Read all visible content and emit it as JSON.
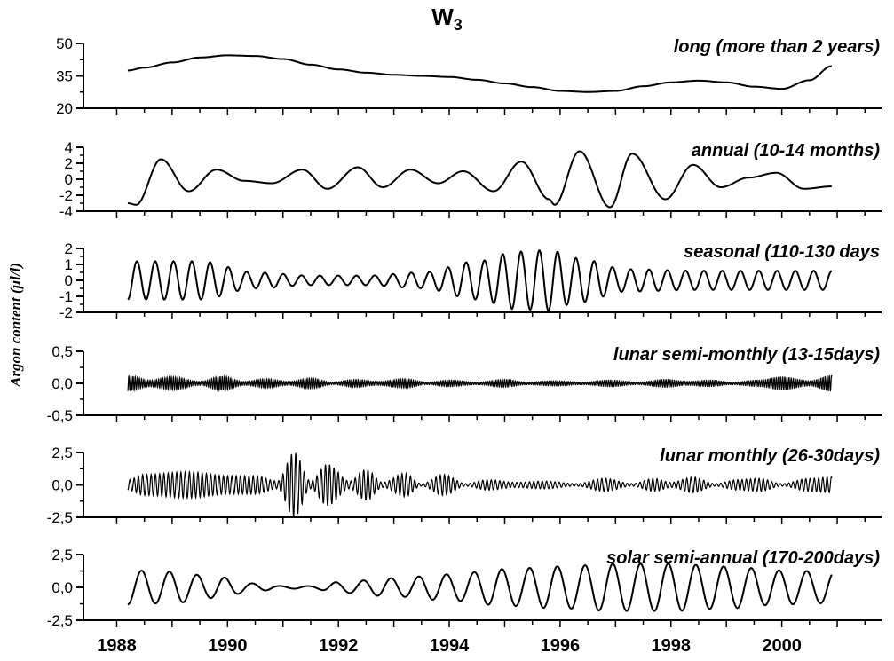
{
  "figure": {
    "title_main": "W",
    "title_sub": "3",
    "ylabel": "Argon content (μl/l)"
  },
  "chart_data": {
    "type": "line",
    "title": "W3",
    "xlabel": "",
    "ylabel": "Argon content (μl/l)",
    "x_ticks": [
      "1988",
      "1990",
      "1992",
      "1994",
      "1996",
      "1998",
      "2000"
    ],
    "xlim": [
      1987.4,
      2001.8
    ],
    "grid": false,
    "panels": [
      {
        "name": "long (more than 2 years)",
        "ylim": [
          20,
          50
        ],
        "yticks": [
          "50",
          "35",
          "20"
        ],
        "series_x": [
          1988.2,
          1988.5,
          1989.0,
          1989.5,
          1990.0,
          1990.5,
          1991.0,
          1991.5,
          1992.0,
          1992.5,
          1993.0,
          1993.5,
          1994.0,
          1994.5,
          1995.0,
          1995.5,
          1996.0,
          1996.5,
          1997.0,
          1997.5,
          1998.0,
          1998.5,
          1999.0,
          1999.5,
          2000.0,
          2000.5,
          2000.9
        ],
        "series_y": [
          37.5,
          38.8,
          41.2,
          43.5,
          44.5,
          44.2,
          42.8,
          40.2,
          38.0,
          36.5,
          35.5,
          35.0,
          34.5,
          33.2,
          31.5,
          29.8,
          28.0,
          27.5,
          28.0,
          30.2,
          32.0,
          32.8,
          32.0,
          30.0,
          29.0,
          33.0,
          39.5
        ]
      },
      {
        "name": "annual (10-14 months)",
        "ylim": [
          -4,
          4
        ],
        "yticks": [
          "4",
          "2",
          "0",
          "-2",
          "-4"
        ],
        "series_x": [
          1988.2,
          1988.35,
          1988.8,
          1989.3,
          1989.8,
          1990.3,
          1990.8,
          1991.35,
          1991.8,
          1992.35,
          1992.8,
          1993.3,
          1993.8,
          1994.25,
          1994.8,
          1995.3,
          1995.8,
          1995.9,
          1996.35,
          1996.9,
          1997.3,
          1997.9,
          1998.4,
          1998.9,
          1999.4,
          1999.9,
          2000.4,
          2000.9
        ],
        "series_y": [
          -3.0,
          -3.2,
          2.5,
          -1.5,
          1.2,
          -0.2,
          -0.5,
          1.2,
          -1.2,
          1.5,
          -1.0,
          1.2,
          -0.5,
          1.0,
          -1.5,
          2.2,
          -2.5,
          -3.2,
          3.5,
          -3.5,
          3.2,
          -2.5,
          1.8,
          -1.0,
          0.2,
          0.8,
          -1.2,
          -0.9
        ]
      },
      {
        "name": "seasonal (110-130 days",
        "ylim": [
          -2,
          2
        ],
        "yticks": [
          "2",
          "1",
          "0",
          "-1",
          "-2"
        ],
        "period_years": 0.33,
        "env_x": [
          1988.2,
          1989.5,
          1990.5,
          1991.5,
          1992.5,
          1993.5,
          1994.5,
          1995.2,
          1995.8,
          1996.3,
          1997.2,
          1998.5,
          2000.9
        ],
        "env_amp": [
          1.2,
          1.2,
          0.5,
          0.3,
          0.3,
          0.5,
          1.2,
          1.8,
          1.9,
          1.4,
          0.7,
          0.6,
          0.6
        ]
      },
      {
        "name": "lunar semi-monthly (13-15days)",
        "ylim": [
          -0.5,
          0.5
        ],
        "yticks": [
          "0,5",
          "0,0",
          "-0,5"
        ],
        "period_years": 0.0383,
        "env_x": [
          1988.2,
          1988.6,
          1989.0,
          1989.5,
          1989.9,
          1990.3,
          1990.7,
          1991.1,
          1991.5,
          1991.9,
          1992.3,
          1992.7,
          1993.2,
          1993.6,
          1994.0,
          1994.5,
          1995.0,
          1995.4,
          1995.9,
          1996.4,
          1996.9,
          1997.4,
          1997.9,
          1998.3,
          1998.7,
          1999.1,
          1999.6,
          2000.0,
          2000.5,
          2000.9
        ],
        "env_amp": [
          0.12,
          0.05,
          0.1,
          0.03,
          0.11,
          0.03,
          0.07,
          0.03,
          0.08,
          0.02,
          0.06,
          0.03,
          0.07,
          0.02,
          0.05,
          0.02,
          0.06,
          0.02,
          0.04,
          0.02,
          0.05,
          0.02,
          0.06,
          0.03,
          0.05,
          0.02,
          0.05,
          0.1,
          0.04,
          0.12
        ]
      },
      {
        "name": "lunar monthly (26-30days)",
        "ylim": [
          -2.5,
          2.5
        ],
        "yticks": [
          "2,5",
          "0,0",
          "-2,5"
        ],
        "period_years": 0.0767,
        "env_x": [
          1988.2,
          1988.5,
          1989.3,
          1990.0,
          1990.5,
          1990.9,
          1991.2,
          1991.5,
          1991.8,
          1992.2,
          1992.5,
          1992.8,
          1993.2,
          1993.5,
          1993.9,
          1994.3,
          1994.7,
          1995.2,
          1995.7,
          1996.3,
          1996.8,
          1997.3,
          1997.7,
          1998.0,
          1998.4,
          1998.8,
          1999.2,
          1999.6,
          2000.0,
          2000.5,
          2000.9
        ],
        "env_amp": [
          0.4,
          0.8,
          1.0,
          0.7,
          0.7,
          0.3,
          2.5,
          0.3,
          1.6,
          0.3,
          1.2,
          0.2,
          0.9,
          0.1,
          0.8,
          0.1,
          0.4,
          0.2,
          0.3,
          0.1,
          0.5,
          0.1,
          0.5,
          0.2,
          0.6,
          0.1,
          0.4,
          0.5,
          0.1,
          0.5,
          0.6
        ]
      },
      {
        "name": "solar semi-annual (170-200days)",
        "ylim": [
          -2.5,
          2.5
        ],
        "yticks": [
          "2,5",
          "0,0",
          "-2,5"
        ],
        "period_years": 0.5,
        "env_x": [
          1988.2,
          1989.0,
          1989.8,
          1990.5,
          1991.0,
          1991.5,
          1992.0,
          1993.0,
          1994.0,
          1995.0,
          1996.0,
          1997.0,
          1998.0,
          1999.0,
          2000.0,
          2000.9
        ],
        "env_amp": [
          1.3,
          1.2,
          0.8,
          0.3,
          0.1,
          0.1,
          0.4,
          0.7,
          1.0,
          1.4,
          1.6,
          1.8,
          1.8,
          1.6,
          1.3,
          1.2
        ]
      }
    ]
  }
}
